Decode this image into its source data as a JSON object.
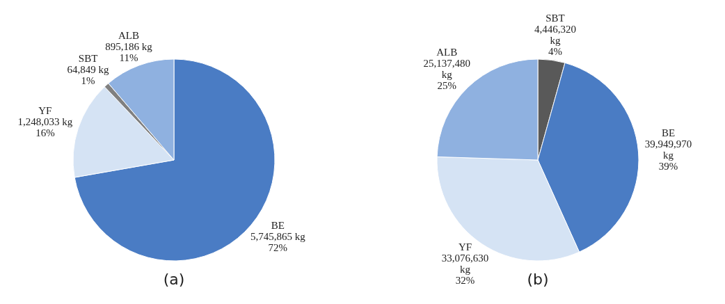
{
  "chart_data": [
    {
      "type": "pie",
      "title": "(a)",
      "categories": [
        "BE",
        "YF",
        "SBT",
        "ALB"
      ],
      "values": [
        5745865,
        1248033,
        64849,
        895186
      ],
      "colors": [
        "#4a7cc4",
        "#d5e3f4",
        "#808080",
        "#8fb1e0"
      ],
      "value_labels": [
        "5,745,865 kg\n72%",
        "1,248,033 kg\n16%",
        "64,849 kg\n1%",
        "895,186 kg\n11%"
      ]
    },
    {
      "type": "pie",
      "title": "(b)",
      "categories": [
        "SBT",
        "BE",
        "YF",
        "ALB"
      ],
      "values": [
        4446320,
        39949970,
        33076630,
        25137480
      ],
      "colors": [
        "#595959",
        "#4a7cc4",
        "#d5e3f4",
        "#8fb1e0"
      ],
      "value_labels": [
        "4,446,320\nkg\n4%",
        "39,949,970\nkg\n39%",
        "33,076,630\nkg\n32%",
        "25,137,480\nkg\n25%"
      ]
    }
  ]
}
